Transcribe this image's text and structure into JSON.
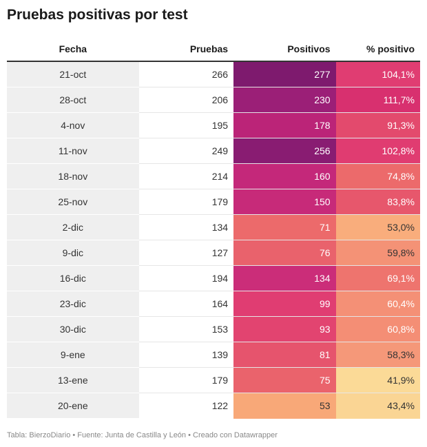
{
  "title": "Pruebas positivas por test",
  "footer": "Tabla: BierzoDiario • Fuente: Junta de Castilla y León • Creado con Datawrapper",
  "chart_data": {
    "type": "table",
    "columns": [
      "Fecha",
      "Pruebas",
      "Positivos",
      "% positivo"
    ],
    "rows": [
      {
        "fecha": "21-oct",
        "pruebas": "266",
        "positivos": "277",
        "pct": "104,1%",
        "pos_color": "#7e1a6e",
        "pct_color": "#e03d72",
        "pos_text": "#ffffff",
        "pct_text": "#ffffff"
      },
      {
        "fecha": "28-oct",
        "pruebas": "206",
        "positivos": "230",
        "pct": "111,7%",
        "pos_color": "#9b1f77",
        "pct_color": "#d8306f",
        "pos_text": "#ffffff",
        "pct_text": "#ffffff"
      },
      {
        "fecha": "4-nov",
        "pruebas": "195",
        "positivos": "178",
        "pct": "91,3%",
        "pos_color": "#bb2478",
        "pct_color": "#e34a6d",
        "pos_text": "#ffffff",
        "pct_text": "#ffffff"
      },
      {
        "fecha": "11-nov",
        "pruebas": "249",
        "positivos": "256",
        "pct": "102,8%",
        "pos_color": "#891c72",
        "pct_color": "#e03c71",
        "pos_text": "#ffffff",
        "pct_text": "#ffffff"
      },
      {
        "fecha": "18-nov",
        "pruebas": "214",
        "positivos": "160",
        "pct": "74,8%",
        "pos_color": "#c4287a",
        "pct_color": "#ec6a6b",
        "pos_text": "#ffffff",
        "pct_text": "#ffffff"
      },
      {
        "fecha": "25-nov",
        "pruebas": "179",
        "positivos": "150",
        "pct": "83,8%",
        "pos_color": "#c72a79",
        "pct_color": "#e7576c",
        "pos_text": "#ffffff",
        "pct_text": "#ffffff"
      },
      {
        "fecha": "2-dic",
        "pruebas": "134",
        "positivos": "71",
        "pct": "53,0%",
        "pos_color": "#ec6a6b",
        "pct_color": "#f9ad7c",
        "pos_text": "#ffffff",
        "pct_text": "#333333"
      },
      {
        "fecha": "9-dic",
        "pruebas": "127",
        "positivos": "76",
        "pct": "59,8%",
        "pos_color": "#e9626c",
        "pct_color": "#f49276",
        "pos_text": "#ffffff",
        "pct_text": "#333333"
      },
      {
        "fecha": "16-dic",
        "pruebas": "194",
        "positivos": "134",
        "pct": "69,1%",
        "pos_color": "#cb2d79",
        "pct_color": "#ee746e",
        "pos_text": "#ffffff",
        "pct_text": "#ffffff"
      },
      {
        "fecha": "23-dic",
        "pruebas": "164",
        "positivos": "99",
        "pct": "60,4%",
        "pos_color": "#e03d72",
        "pct_color": "#f49076",
        "pos_text": "#ffffff",
        "pct_text": "#ffffff"
      },
      {
        "fecha": "30-dic",
        "pruebas": "153",
        "positivos": "93",
        "pct": "60,8%",
        "pos_color": "#e24470",
        "pct_color": "#f48e75",
        "pos_text": "#ffffff",
        "pct_text": "#ffffff"
      },
      {
        "fecha": "9-ene",
        "pruebas": "139",
        "positivos": "81",
        "pct": "58,3%",
        "pos_color": "#e6546d",
        "pct_color": "#f59879",
        "pos_text": "#ffffff",
        "pct_text": "#333333"
      },
      {
        "fecha": "13-ene",
        "pruebas": "179",
        "positivos": "75",
        "pct": "41,9%",
        "pos_color": "#ea636c",
        "pct_color": "#fbda97",
        "pos_text": "#ffffff",
        "pct_text": "#333333"
      },
      {
        "fecha": "20-ene",
        "pruebas": "122",
        "positivos": "53",
        "pct": "43,4%",
        "pos_color": "#f8a878",
        "pct_color": "#fad594",
        "pos_text": "#333333",
        "pct_text": "#333333"
      }
    ]
  }
}
